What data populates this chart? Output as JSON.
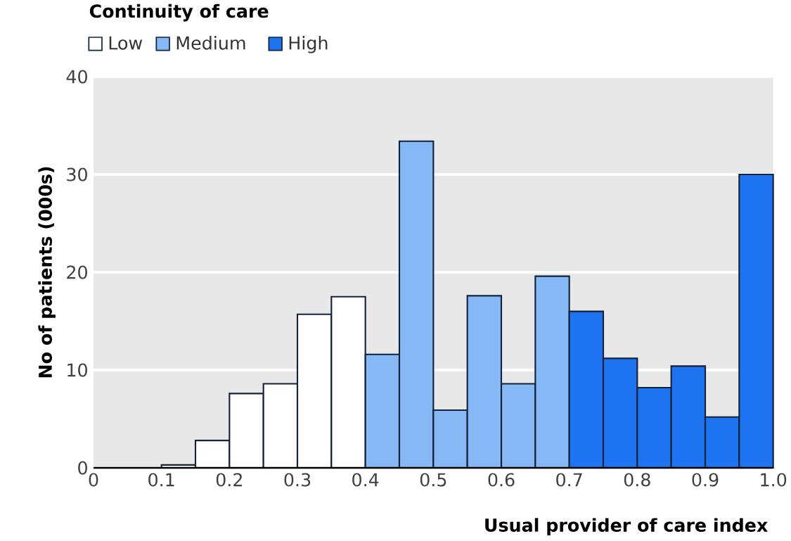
{
  "chart_data": {
    "type": "histogram",
    "xlabel": "Usual provider of care index",
    "ylabel": "No of patients (000s)",
    "legend_title": "Continuity of care",
    "bins": [
      0.1,
      0.15,
      0.2,
      0.25,
      0.3,
      0.35,
      0.4,
      0.45,
      0.5,
      0.55,
      0.6,
      0.65,
      0.7,
      0.75,
      0.8,
      0.85,
      0.9,
      0.95,
      1.0
    ],
    "series": [
      {
        "name": "Low",
        "color": "#ffffff",
        "values": [
          0.3,
          2.8,
          7.6,
          8.6,
          15.7,
          17.5,
          null,
          null,
          null,
          null,
          null,
          null,
          null,
          null,
          null,
          null,
          null,
          null
        ]
      },
      {
        "name": "Medium",
        "color": "#85b8f5",
        "values": [
          null,
          null,
          null,
          null,
          null,
          null,
          11.6,
          33.4,
          5.9,
          17.6,
          8.6,
          19.6,
          null,
          null,
          null,
          null,
          null,
          null
        ]
      },
      {
        "name": "High",
        "color": "#1e73f0",
        "values": [
          null,
          null,
          null,
          null,
          null,
          null,
          null,
          null,
          null,
          null,
          null,
          null,
          16.0,
          11.2,
          8.2,
          10.4,
          5.2,
          30.0
        ]
      }
    ],
    "xlim": [
      0,
      1
    ],
    "xticks": [
      0,
      0.1,
      0.2,
      0.3,
      0.4,
      0.5,
      0.6,
      0.7,
      0.8,
      0.9,
      {
        "value": 1,
        "label": "1.0"
      }
    ],
    "ylim": [
      0,
      40
    ],
    "yticks": [
      0,
      10,
      20,
      30,
      40
    ],
    "grid": "y",
    "legend": "top left"
  }
}
